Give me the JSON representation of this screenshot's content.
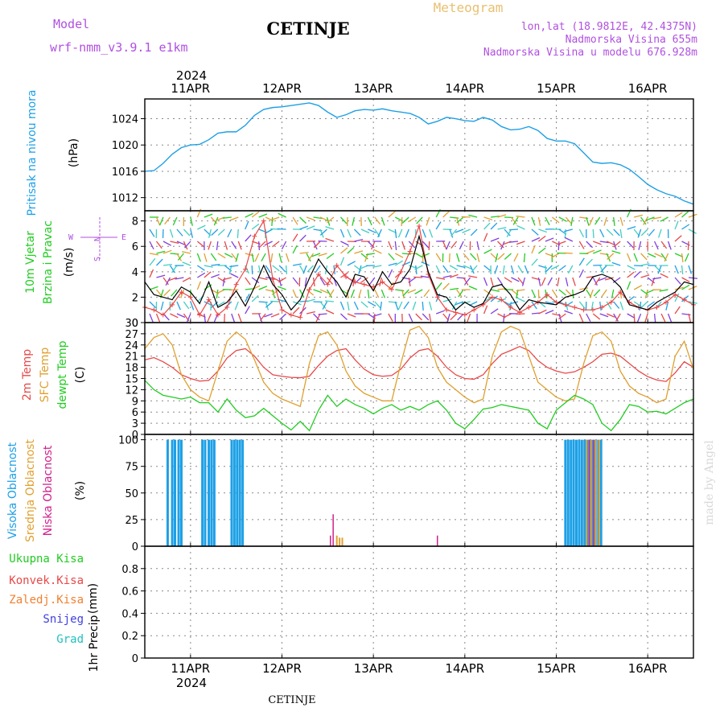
{
  "header": {
    "model_label": "Model",
    "model_name": "wrf-nmm_v3.9.1 e1km",
    "station": "CETINJE",
    "product": "Meteogram",
    "lonlat": "lon,lat (18.9812E, 42.4375N)",
    "elevation": "Nadmorska Visina 655m",
    "elevation_model": "Nadmorska Visina u modelu 676.928m",
    "footer_station": "CETINJE",
    "watermark": "made by Angel"
  },
  "colors": {
    "pressure": "#1ea0e6",
    "wind_label": "#22cc22",
    "temp2m": "#e84848",
    "sfc_temp": "#e0a030",
    "dewpoint": "#22cc22",
    "cloud_high": "#1ea0e6",
    "cloud_mid": "#e0a030",
    "cloud_low": "#d0208c",
    "precip_total": "#22cc22",
    "precip_conv": "#e84848",
    "precip_frz": "#f08030",
    "precip_snow": "#4040e0",
    "precip_graup": "#20c0c0",
    "header_purple": "#b050e0",
    "header_orange": "#e8c070"
  },
  "chart_data": [
    {
      "type": "line",
      "panel": "pressure",
      "ylabel_main": "Pritisak na nivou mora",
      "ylabel_unit": "(hPa)",
      "ylim": [
        1010,
        1027
      ],
      "yticks": [
        1012,
        1016,
        1020,
        1024
      ],
      "x_range": [
        -0.5,
        5.5
      ],
      "series": [
        {
          "x": [
            -0.5,
            -0.4,
            -0.3,
            -0.2,
            -0.1,
            0,
            0.1,
            0.2,
            0.3,
            0.4,
            0.5,
            0.6,
            0.7,
            0.8,
            0.9,
            1.0,
            1.1,
            1.2,
            1.3,
            1.4,
            1.5,
            1.6,
            1.7,
            1.8,
            1.9,
            2.0,
            2.1,
            2.2,
            2.3,
            2.4,
            2.5,
            2.6,
            2.7,
            2.8,
            2.9,
            3.0,
            3.1,
            3.2,
            3.3,
            3.4,
            3.5,
            3.6,
            3.7,
            3.8,
            3.9,
            4.0,
            4.1,
            4.2,
            4.3,
            4.4,
            4.5,
            4.6,
            4.7,
            4.8,
            4.9,
            5.0,
            5.1,
            5.2,
            5.3,
            5.4,
            5.5
          ],
          "values": [
            1016,
            1016.1,
            1017.2,
            1018.6,
            1019.6,
            1020,
            1020.1,
            1020.8,
            1021.8,
            1022,
            1022,
            1023,
            1024.5,
            1025.4,
            1025.7,
            1025.8,
            1026,
            1026.2,
            1026.4,
            1026,
            1025,
            1024.2,
            1024.6,
            1025.2,
            1025.4,
            1025.3,
            1025.5,
            1025.2,
            1025,
            1024.8,
            1024.2,
            1023.2,
            1023.6,
            1024.2,
            1024,
            1023.7,
            1023.6,
            1024.2,
            1023.8,
            1022.8,
            1022.3,
            1022.4,
            1022.8,
            1022.2,
            1021,
            1020.6,
            1020.6,
            1020.2,
            1018.8,
            1017.4,
            1017.2,
            1017.3,
            1017,
            1016.3,
            1015.2,
            1014,
            1013.2,
            1012.6,
            1012.2,
            1011.5,
            1011
          ]
        }
      ]
    },
    {
      "type": "line",
      "panel": "wind",
      "ylabel_main": "10m Vjetar",
      "ylabel_sub": "Brzina i Pravac",
      "ylabel_unit": "(m/s)",
      "compass": {
        "n": "N",
        "s": "S",
        "e": "E",
        "w": "W"
      },
      "ylim": [
        0,
        8.8
      ],
      "yticks": [
        0,
        2,
        4,
        6,
        8
      ],
      "x_range": [
        -0.5,
        5.5
      ],
      "series": [
        {
          "name": "speed",
          "x": [
            -0.5,
            -0.4,
            -0.3,
            -0.2,
            -0.1,
            0,
            0.1,
            0.2,
            0.3,
            0.4,
            0.5,
            0.6,
            0.7,
            0.8,
            0.9,
            1.0,
            1.1,
            1.2,
            1.3,
            1.4,
            1.5,
            1.6,
            1.7,
            1.8,
            1.9,
            2.0,
            2.1,
            2.2,
            2.3,
            2.4,
            2.5,
            2.6,
            2.7,
            2.8,
            2.9,
            3.0,
            3.1,
            3.2,
            3.3,
            3.4,
            3.5,
            3.6,
            3.7,
            3.8,
            3.9,
            4.0,
            4.1,
            4.2,
            4.3,
            4.4,
            4.5,
            4.6,
            4.7,
            4.8,
            4.9,
            5.0,
            5.1,
            5.2,
            5.3,
            5.4,
            5.5
          ],
          "values": [
            3.2,
            2.2,
            2.0,
            1.8,
            2.8,
            2.4,
            1.5,
            3.2,
            1.2,
            1.6,
            2.5,
            1.3,
            2.8,
            4.5,
            3.0,
            2.2,
            1.0,
            1.8,
            3.5,
            5.0,
            4.0,
            3.2,
            2.0,
            3.8,
            3.6,
            2.5,
            4.0,
            3.0,
            3.2,
            4.2,
            6.8,
            4.0,
            2.2,
            2.0,
            1.0,
            1.6,
            1.2,
            1.5,
            2.8,
            3.0,
            2.2,
            1.0,
            1.8,
            1.6,
            1.5,
            1.4,
            2.0,
            2.2,
            2.5,
            3.6,
            3.8,
            3.5,
            2.8,
            1.4,
            1.2,
            1.0,
            1.6,
            2.0,
            2.4,
            3.2,
            3.0
          ]
        },
        {
          "name": "gust",
          "x": [
            -0.5,
            -0.4,
            -0.3,
            -0.2,
            -0.1,
            0,
            0.1,
            0.2,
            0.3,
            0.4,
            0.5,
            0.6,
            0.7,
            0.8,
            0.9,
            1.0,
            1.1,
            1.2,
            1.3,
            1.4,
            1.5,
            1.6,
            1.7,
            1.8,
            1.9,
            2.0,
            2.1,
            2.2,
            2.3,
            2.4,
            2.5,
            2.6,
            2.7,
            2.8,
            2.9,
            3.0,
            3.1,
            3.2,
            3.3,
            3.4,
            3.5,
            3.6,
            3.7,
            3.8,
            3.9,
            4.0,
            4.1,
            4.2,
            4.3,
            4.4,
            4.5,
            4.6,
            4.7,
            4.8,
            4.9,
            5.0,
            5.1,
            5.2,
            5.3,
            5.4,
            5.5
          ],
          "values": [
            1.2,
            1.0,
            0.6,
            1.4,
            2.4,
            2.0,
            0.6,
            1.8,
            0.6,
            1.2,
            3.0,
            4.2,
            6.8,
            8.0,
            3.4,
            1.0,
            0.6,
            0.4,
            2.6,
            3.8,
            3.0,
            4.5,
            3.6,
            3.2,
            3.0,
            2.8,
            3.2,
            2.6,
            4.0,
            5.6,
            7.6,
            3.8,
            2.0,
            1.0,
            0.8,
            0.6,
            1.0,
            1.4,
            2.0,
            1.8,
            1.2,
            0.8,
            1.2,
            1.6,
            2.2,
            1.6,
            1.4,
            1.2,
            1.0,
            1.0,
            1.2,
            1.6,
            2.4,
            1.6,
            1.2,
            1.0,
            1.2,
            1.6,
            2.2,
            1.8,
            1.4
          ]
        }
      ]
    },
    {
      "type": "line",
      "panel": "temperature",
      "ylabel_main": "2m Temp",
      "ylabel_sub": "SFC Temp",
      "ylabel_sub2": "dewpt Temp",
      "ylabel_unit": "(C)",
      "ylim": [
        0,
        30
      ],
      "yticks": [
        0,
        3,
        6,
        9,
        12,
        15,
        18,
        21,
        24,
        27,
        30
      ],
      "x_range": [
        -0.5,
        5.5
      ],
      "series": [
        {
          "name": "2m",
          "x": [
            -0.5,
            -0.4,
            -0.3,
            -0.2,
            -0.1,
            0,
            0.1,
            0.2,
            0.3,
            0.4,
            0.5,
            0.6,
            0.7,
            0.8,
            0.9,
            1.0,
            1.1,
            1.2,
            1.3,
            1.4,
            1.5,
            1.6,
            1.7,
            1.8,
            1.9,
            2.0,
            2.1,
            2.2,
            2.3,
            2.4,
            2.5,
            2.6,
            2.7,
            2.8,
            2.9,
            3.0,
            3.1,
            3.2,
            3.3,
            3.4,
            3.5,
            3.6,
            3.7,
            3.8,
            3.9,
            4.0,
            4.1,
            4.2,
            4.3,
            4.4,
            4.5,
            4.6,
            4.7,
            4.8,
            4.9,
            5.0,
            5.1,
            5.2,
            5.3,
            5.4,
            5.5
          ],
          "values": [
            20,
            20.6,
            19.5,
            18,
            16,
            15,
            14.3,
            14.5,
            17,
            20.5,
            22.5,
            23,
            21,
            18,
            16,
            15.6,
            15.3,
            15.2,
            15.6,
            18.5,
            21,
            22.5,
            23,
            20,
            17.5,
            16,
            15.6,
            15.8,
            17.5,
            20.5,
            22.5,
            23,
            21,
            18,
            16,
            15,
            14.8,
            16,
            19,
            21.5,
            22.5,
            23.6,
            22.5,
            19.8,
            18,
            17,
            16.4,
            16.8,
            18,
            19.5,
            21.5,
            21.8,
            21,
            19,
            17,
            15.5,
            14.6,
            14.2,
            16.5,
            19.5,
            18
          ]
        },
        {
          "name": "sfc",
          "x": [
            -0.5,
            -0.4,
            -0.3,
            -0.2,
            -0.1,
            0,
            0.1,
            0.2,
            0.3,
            0.4,
            0.5,
            0.6,
            0.7,
            0.8,
            0.9,
            1.0,
            1.1,
            1.2,
            1.3,
            1.4,
            1.5,
            1.6,
            1.7,
            1.8,
            1.9,
            2.0,
            2.1,
            2.2,
            2.3,
            2.4,
            2.5,
            2.6,
            2.7,
            2.8,
            2.9,
            3.0,
            3.1,
            3.2,
            3.3,
            3.4,
            3.5,
            3.6,
            3.7,
            3.8,
            3.9,
            4.0,
            4.1,
            4.2,
            4.3,
            4.4,
            4.5,
            4.6,
            4.7,
            4.8,
            4.9,
            5.0,
            5.1,
            5.2,
            5.3,
            5.4,
            5.5
          ],
          "values": [
            23,
            26,
            27,
            24,
            16,
            12,
            10,
            9,
            17,
            25,
            27.5,
            25.5,
            20,
            14,
            11,
            9.5,
            8.5,
            7.5,
            19,
            26.5,
            27.5,
            24,
            17,
            13,
            11,
            10,
            9,
            9,
            19,
            28,
            29,
            26,
            18,
            14,
            12,
            10,
            8.5,
            9.5,
            21,
            27.5,
            29,
            28,
            21,
            14,
            12,
            10,
            9,
            9.5,
            19,
            26.5,
            27.5,
            25,
            17,
            13,
            11,
            10,
            8.5,
            9.5,
            21,
            25,
            17.5
          ]
        },
        {
          "name": "dew",
          "x": [
            -0.5,
            -0.4,
            -0.3,
            -0.2,
            -0.1,
            0,
            0.1,
            0.2,
            0.3,
            0.4,
            0.5,
            0.6,
            0.7,
            0.8,
            0.9,
            1.0,
            1.1,
            1.2,
            1.3,
            1.4,
            1.5,
            1.6,
            1.7,
            1.8,
            1.9,
            2.0,
            2.1,
            2.2,
            2.3,
            2.4,
            2.5,
            2.6,
            2.7,
            2.8,
            2.9,
            3.0,
            3.1,
            3.2,
            3.3,
            3.4,
            3.5,
            3.6,
            3.7,
            3.8,
            3.9,
            4.0,
            4.1,
            4.2,
            4.3,
            4.4,
            4.5,
            4.6,
            4.7,
            4.8,
            4.9,
            5.0,
            5.1,
            5.2,
            5.3,
            5.4,
            5.5
          ],
          "values": [
            14.5,
            12,
            10.5,
            10,
            9.5,
            10,
            8.5,
            8.5,
            6,
            9.5,
            6.5,
            4.5,
            5,
            7,
            5,
            3,
            1.2,
            3.5,
            1,
            6.5,
            10.5,
            7.5,
            9.5,
            8,
            7,
            5.5,
            7,
            8,
            6.5,
            7.5,
            6.5,
            8,
            9,
            6.5,
            3,
            1.5,
            4,
            6.8,
            7.2,
            8,
            7.5,
            7,
            6.5,
            3,
            1.5,
            6.5,
            8.5,
            10.5,
            9.5,
            8,
            3,
            1,
            4,
            8,
            7.5,
            6,
            6.2,
            5.5,
            7,
            8.5,
            9.5
          ]
        }
      ]
    },
    {
      "type": "bar",
      "panel": "clouds",
      "ylabel_main": "Visoka Oblacnost",
      "ylabel_sub": "Srednja Oblacnost",
      "ylabel_sub2": "Niska Oblacnost",
      "ylabel_unit": "(%)",
      "ylim": [
        0,
        105
      ],
      "yticks": [
        0,
        25,
        50,
        75,
        100
      ],
      "x_range": [
        -0.5,
        5.5
      ],
      "series": [
        {
          "name": "high",
          "x": [
            -0.25,
            -0.2,
            -0.17,
            -0.13,
            -0.1,
            0.13,
            0.16,
            0.2,
            0.23,
            0.26,
            0.45,
            0.48,
            0.51,
            0.54,
            0.57,
            4.1,
            4.13,
            4.16,
            4.19,
            4.22,
            4.25,
            4.28,
            4.31,
            4.34,
            4.37,
            4.4,
            4.43,
            4.46,
            4.49
          ],
          "values": [
            100,
            100,
            100,
            100,
            100,
            100,
            100,
            100,
            100,
            100,
            100,
            100,
            100,
            100,
            100,
            100,
            100,
            100,
            100,
            100,
            100,
            100,
            100,
            100,
            100,
            100,
            100,
            100,
            100
          ]
        },
        {
          "name": "mid",
          "x": [
            1.6,
            1.63,
            1.66,
            4.33,
            4.38,
            4.43,
            4.47
          ],
          "values": [
            10,
            8,
            8,
            100,
            100,
            100,
            100
          ]
        },
        {
          "name": "low",
          "x": [
            1.53,
            1.56,
            2.7,
            4.36,
            4.41
          ],
          "values": [
            10,
            30,
            10,
            100,
            100
          ]
        }
      ]
    },
    {
      "type": "bar",
      "panel": "precip",
      "ylabel_main": "1hr Precip",
      "ylabel_unit": "(mm)",
      "legend": [
        "Ukupna Kisa",
        "Konvek.Kisa",
        "Zaledj.Kisa",
        "Snijeg",
        "Grad"
      ],
      "ylim": [
        0,
        1
      ],
      "yticks": [
        "0",
        "0.2",
        "0.4",
        "0.6",
        "0.8"
      ],
      "x_range": [
        -0.5,
        5.5
      ],
      "series": [
        {
          "name": "Ukupna Kisa",
          "x": [],
          "values": []
        }
      ]
    }
  ],
  "x_axis": {
    "year": "2024",
    "ticks": [
      {
        "x": 0,
        "label": "11APR"
      },
      {
        "x": 1,
        "label": "12APR"
      },
      {
        "x": 2,
        "label": "13APR"
      },
      {
        "x": 3,
        "label": "14APR"
      },
      {
        "x": 4,
        "label": "15APR"
      },
      {
        "x": 5,
        "label": "16APR"
      }
    ]
  }
}
